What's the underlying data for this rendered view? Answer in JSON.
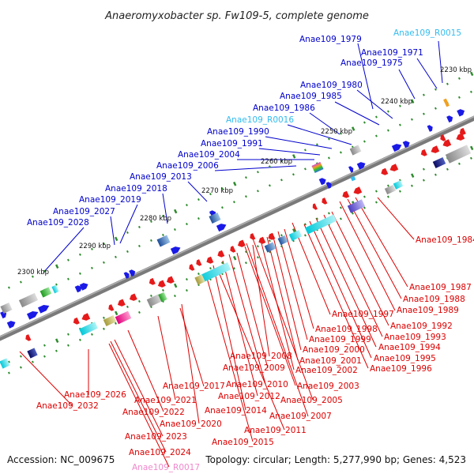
{
  "title": "Anaeromyxobacter sp. Fw109-5, complete genome",
  "accession": "Accession: NC_009675",
  "topology": "Topology: circular; Length: 5,277,990 bp; Genes: 4,523",
  "colors": {
    "forward_label": "#0000cc",
    "reverse_label": "#dd0000",
    "rna_forward_label": "#33bbee",
    "rna_reverse_label": "#ee88cc",
    "backbone": "#7f7f7f",
    "tick": "#2e8b2e",
    "forward_gene": "#1a1ae6",
    "reverse_gene": "#e61a1a"
  },
  "kbp_ticks": [
    "2230 kbp",
    "2240 kbp",
    "2250 kbp",
    "2260 kbp",
    "2270 kbp",
    "2280 kbp",
    "2290 kbp",
    "2300 kbp"
  ],
  "forward_labels": [
    {
      "text": "Anae109_1979",
      "strand": "forward"
    },
    {
      "text": "Anae109_R0015",
      "strand": "rna-forward"
    },
    {
      "text": "Anae109_1971",
      "strand": "forward"
    },
    {
      "text": "Anae109_1975",
      "strand": "forward"
    },
    {
      "text": "Anae109_1980",
      "strand": "forward"
    },
    {
      "text": "Anae109_1985",
      "strand": "forward"
    },
    {
      "text": "Anae109_1986",
      "strand": "forward"
    },
    {
      "text": "Anae109_R0016",
      "strand": "rna-forward"
    },
    {
      "text": "Anae109_1990",
      "strand": "forward"
    },
    {
      "text": "Anae109_1991",
      "strand": "forward"
    },
    {
      "text": "Anae109_2004",
      "strand": "forward"
    },
    {
      "text": "Anae109_2006",
      "strand": "forward"
    },
    {
      "text": "Anae109_2013",
      "strand": "forward"
    },
    {
      "text": "Anae109_2018",
      "strand": "forward"
    },
    {
      "text": "Anae109_2019",
      "strand": "forward"
    },
    {
      "text": "Anae109_2027",
      "strand": "forward"
    },
    {
      "text": "Anae109_2028",
      "strand": "forward"
    }
  ],
  "reverse_labels": [
    {
      "text": "Anae109_1984",
      "strand": "reverse"
    },
    {
      "text": "Anae109_1987",
      "strand": "reverse"
    },
    {
      "text": "Anae109_1988",
      "strand": "reverse"
    },
    {
      "text": "Anae109_1989",
      "strand": "reverse"
    },
    {
      "text": "Anae109_1997",
      "strand": "reverse"
    },
    {
      "text": "Anae109_1992",
      "strand": "reverse"
    },
    {
      "text": "Anae109_1998",
      "strand": "reverse"
    },
    {
      "text": "Anae109_1993",
      "strand": "reverse"
    },
    {
      "text": "Anae109_1999",
      "strand": "reverse"
    },
    {
      "text": "Anae109_1994",
      "strand": "reverse"
    },
    {
      "text": "Anae109_2000",
      "strand": "reverse"
    },
    {
      "text": "Anae109_2001",
      "strand": "reverse"
    },
    {
      "text": "Anae109_1995",
      "strand": "reverse"
    },
    {
      "text": "Anae109_2008",
      "strand": "reverse"
    },
    {
      "text": "Anae109_2002",
      "strand": "reverse"
    },
    {
      "text": "Anae109_1996",
      "strand": "reverse"
    },
    {
      "text": "Anae109_2009",
      "strand": "reverse"
    },
    {
      "text": "Anae109_2003",
      "strand": "reverse"
    },
    {
      "text": "Anae109_2017",
      "strand": "reverse"
    },
    {
      "text": "Anae109_2010",
      "strand": "reverse"
    },
    {
      "text": "Anae109_2026",
      "strand": "reverse"
    },
    {
      "text": "Anae109_2012",
      "strand": "reverse"
    },
    {
      "text": "Anae109_2005",
      "strand": "reverse"
    },
    {
      "text": "Anae109_2021",
      "strand": "reverse"
    },
    {
      "text": "Anae109_2032",
      "strand": "reverse"
    },
    {
      "text": "Anae109_2014",
      "strand": "reverse"
    },
    {
      "text": "Anae109_2007",
      "strand": "reverse"
    },
    {
      "text": "Anae109_2022",
      "strand": "reverse"
    },
    {
      "text": "Anae109_2020",
      "strand": "reverse"
    },
    {
      "text": "Anae109_2011",
      "strand": "reverse"
    },
    {
      "text": "Anae109_2023",
      "strand": "reverse"
    },
    {
      "text": "Anae109_2015",
      "strand": "reverse"
    },
    {
      "text": "Anae109_2024",
      "strand": "reverse"
    },
    {
      "text": "Anae109_R0017",
      "strand": "rna-reverse"
    }
  ]
}
